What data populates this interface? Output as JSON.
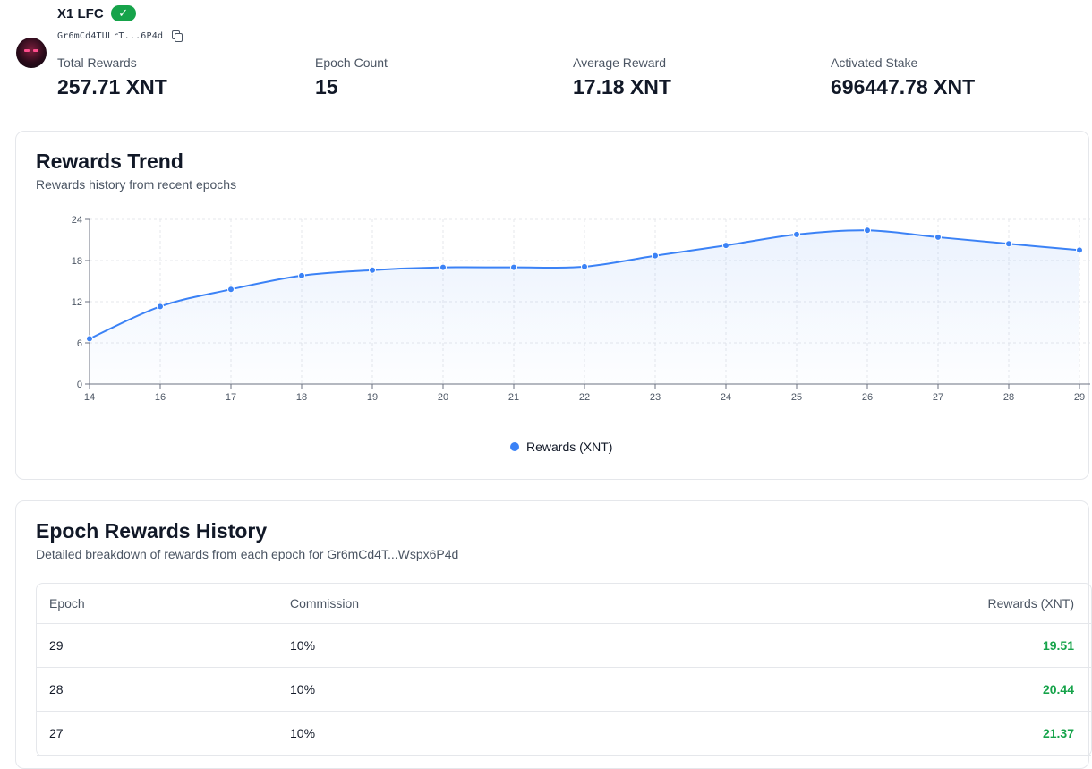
{
  "validator": {
    "name": "X1 LFC",
    "verified_symbol": "✓",
    "address_short": "Gr6mCd4TULrT...6P4d"
  },
  "stats": [
    {
      "label": "Total Rewards",
      "value": "257.71 XNT"
    },
    {
      "label": "Epoch Count",
      "value": "15"
    },
    {
      "label": "Average Reward",
      "value": "17.18 XNT"
    },
    {
      "label": "Activated Stake",
      "value": "696447.78 XNT"
    }
  ],
  "trend": {
    "title": "Rewards Trend",
    "subtitle": "Rewards history from recent epochs"
  },
  "chart_data": {
    "type": "area",
    "x": [
      "14",
      "16",
      "17",
      "18",
      "19",
      "20",
      "21",
      "22",
      "23",
      "24",
      "25",
      "26",
      "27",
      "28",
      "29"
    ],
    "series": [
      {
        "name": "Rewards (XNT)",
        "values": [
          6.6,
          11.3,
          13.8,
          15.8,
          16.6,
          17.0,
          17.0,
          17.1,
          18.7,
          20.2,
          21.8,
          22.4,
          21.4,
          20.44,
          19.51
        ],
        "color": "#3b82f6"
      }
    ],
    "yticks": [
      "0",
      "6",
      "12",
      "18",
      "24"
    ],
    "ylim": [
      0,
      24
    ],
    "legend": "bottom-center",
    "grid": true
  },
  "history": {
    "title": "Epoch Rewards History",
    "subtitle": "Detailed breakdown of rewards from each epoch for Gr6mCd4T...Wspx6P4d",
    "columns": [
      "Epoch",
      "Commission",
      "Rewards (XNT)"
    ],
    "rows": [
      {
        "epoch": "29",
        "commission": "10%",
        "rewards": "19.51"
      },
      {
        "epoch": "28",
        "commission": "10%",
        "rewards": "20.44"
      },
      {
        "epoch": "27",
        "commission": "10%",
        "rewards": "21.37"
      }
    ]
  },
  "colors": {
    "accent": "#3b82f6",
    "positive": "#16a34a",
    "verified": "#16a34a"
  }
}
